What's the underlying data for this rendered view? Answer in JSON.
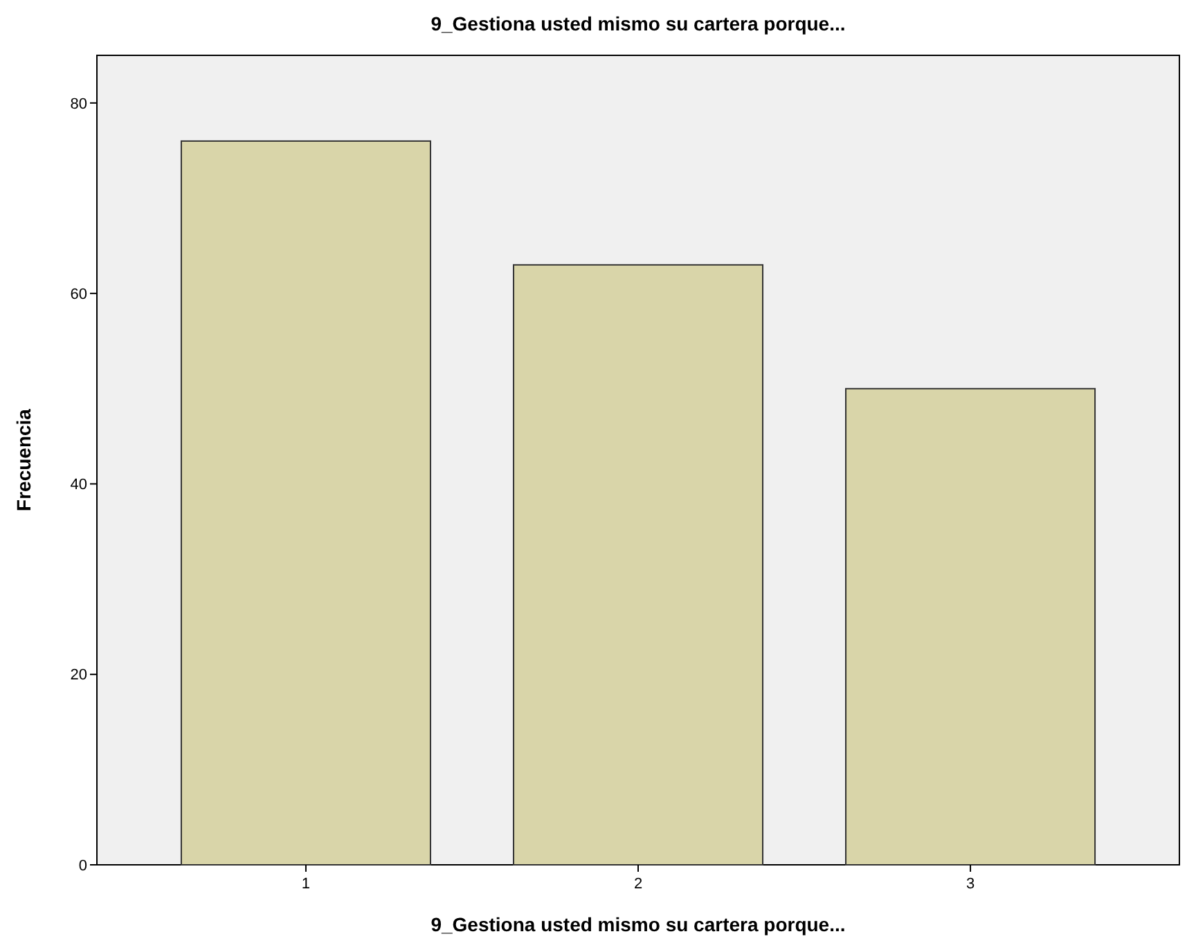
{
  "chart_data": {
    "type": "bar",
    "title": "9_Gestiona usted mismo su cartera porque...",
    "xlabel": "9_Gestiona usted mismo su cartera porque...",
    "ylabel": "Frecuencia",
    "categories": [
      "1",
      "2",
      "3"
    ],
    "values": [
      76,
      63,
      50
    ],
    "color": "#d9d5a9",
    "ylim": [
      0,
      85
    ],
    "yticks": [
      0,
      20,
      40,
      60,
      80
    ],
    "grid": false
  }
}
